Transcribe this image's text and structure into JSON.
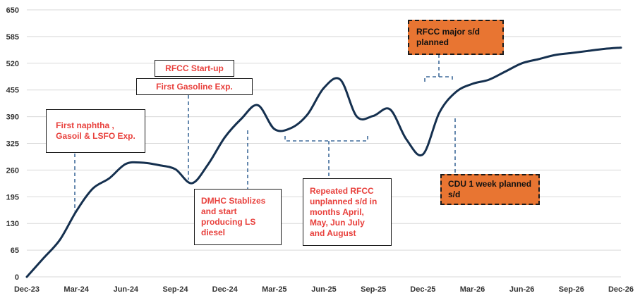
{
  "chart_data": {
    "type": "line",
    "title": "",
    "xlabel": "",
    "ylabel": "",
    "x_ticks": [
      "Dec-23",
      "Mar-24",
      "Jun-24",
      "Sep-24",
      "Dec-24",
      "Mar-25",
      "Jun-25",
      "Sep-25",
      "Dec-25",
      "Mar-26",
      "Jun-26",
      "Sep-26",
      "Dec-26"
    ],
    "ylim": [
      0,
      650
    ],
    "y_ticks": [
      0,
      65,
      130,
      195,
      260,
      325,
      390,
      455,
      520,
      585,
      650
    ],
    "grid": "horizontal",
    "series": [
      {
        "color": "#15304f",
        "points": [
          [
            "Dec-23",
            0
          ],
          [
            "Jan-24",
            45
          ],
          [
            "Feb-24",
            90
          ],
          [
            "Mar-24",
            160
          ],
          [
            "Apr-24",
            215
          ],
          [
            "May-24",
            240
          ],
          [
            "Jun-24",
            275
          ],
          [
            "Jul-24",
            278
          ],
          [
            "Aug-24",
            272
          ],
          [
            "Sep-24",
            262
          ],
          [
            "Oct-24",
            228
          ],
          [
            "Nov-24",
            275
          ],
          [
            "Dec-24",
            340
          ],
          [
            "Jan-25",
            385
          ],
          [
            "Feb-25",
            418
          ],
          [
            "Mar-25",
            360
          ],
          [
            "Apr-25",
            362
          ],
          [
            "May-25",
            395
          ],
          [
            "Jun-25",
            460
          ],
          [
            "Jul-25",
            480
          ],
          [
            "Aug-25",
            390
          ],
          [
            "Sep-25",
            392
          ],
          [
            "Oct-25",
            408
          ],
          [
            "Nov-25",
            335
          ],
          [
            "Dec-25",
            298
          ],
          [
            "Jan-26",
            400
          ],
          [
            "Feb-26",
            450
          ],
          [
            "Mar-26",
            470
          ],
          [
            "Apr-26",
            480
          ],
          [
            "May-26",
            500
          ],
          [
            "Jun-26",
            520
          ],
          [
            "Jul-26",
            530
          ],
          [
            "Aug-26",
            540
          ],
          [
            "Sep-26",
            545
          ],
          [
            "Oct-26",
            550
          ],
          [
            "Nov-26",
            555
          ],
          [
            "Dec-26",
            558
          ]
        ]
      }
    ],
    "annotations": [
      {
        "text": "First naphtha ,\nGasoil & LSFO Exp.",
        "style": "white"
      },
      {
        "text": "RFCC Start-up",
        "style": "white"
      },
      {
        "text": "First Gasoline Exp.",
        "style": "white"
      },
      {
        "text": "DMHC Stablizes\nand start\nproducing LS\ndiesel",
        "style": "white"
      },
      {
        "text": "Repeated RFCC\nunplanned s/d in\nmonths April,\nMay, Jun July\nand August",
        "style": "white"
      },
      {
        "text": "RFCC major s/d\nplanned",
        "style": "orange"
      },
      {
        "text": "CDU 1 week planned\ns/d",
        "style": "orange"
      }
    ]
  }
}
